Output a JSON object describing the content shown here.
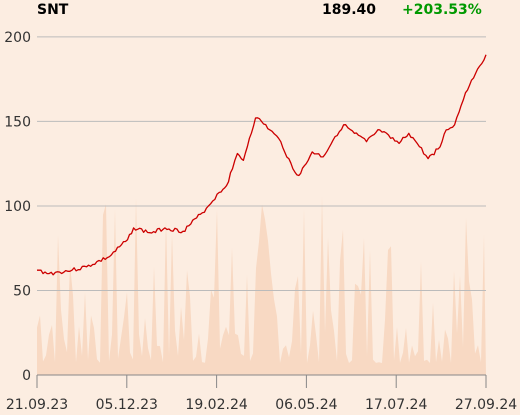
{
  "header": {
    "ticker": "SNT",
    "last_price": "189.40",
    "change": "+203.53%",
    "change_color": "#009900"
  },
  "colors": {
    "background": "#fcede1",
    "line": "#cc0000",
    "volume": "#f8d9c3",
    "grid": "#bbbbbb"
  },
  "chart_data": {
    "type": "line",
    "title": "SNT",
    "xlabel": "",
    "ylabel": "",
    "ylim": [
      0,
      210
    ],
    "yticks": [
      0,
      50,
      100,
      150,
      200
    ],
    "xticks": [
      "21.09.23",
      "05.12.23",
      "19.02.24",
      "06.05.24",
      "17.07.24",
      "27.09.24"
    ],
    "grid": "horizontal",
    "series": [
      {
        "name": "",
        "x": [
          "2023-09-21",
          "2023-10-01",
          "2023-10-20",
          "2023-11-01",
          "2023-11-20",
          "2023-12-05",
          "2023-12-10",
          "2023-12-25",
          "2024-01-05",
          "2024-01-20",
          "2024-02-05",
          "2024-02-10",
          "2024-02-19",
          "2024-02-25",
          "2024-03-01",
          "2024-03-05",
          "2024-03-10",
          "2024-03-15",
          "2024-03-20",
          "2024-03-25",
          "2024-04-01",
          "2024-04-10",
          "2024-04-20",
          "2024-04-25",
          "2024-05-01",
          "2024-05-06",
          "2024-05-15",
          "2024-05-25",
          "2024-06-01",
          "2024-06-10",
          "2024-06-20",
          "2024-07-01",
          "2024-07-10",
          "2024-07-17",
          "2024-07-25",
          "2024-08-01",
          "2024-08-10",
          "2024-08-20",
          "2024-08-25",
          "2024-09-01",
          "2024-09-10",
          "2024-09-20",
          "2024-09-27"
        ],
        "values": [
          62,
          60,
          62,
          64,
          70,
          80,
          87,
          84,
          87,
          85,
          96,
          100,
          108,
          112,
          122,
          131,
          127,
          140,
          152,
          150,
          145,
          138,
          122,
          118,
          125,
          132,
          129,
          141,
          148,
          143,
          138,
          145,
          140,
          137,
          143,
          137,
          128,
          135,
          145,
          148,
          167,
          181,
          189.4
        ]
      }
    ]
  }
}
